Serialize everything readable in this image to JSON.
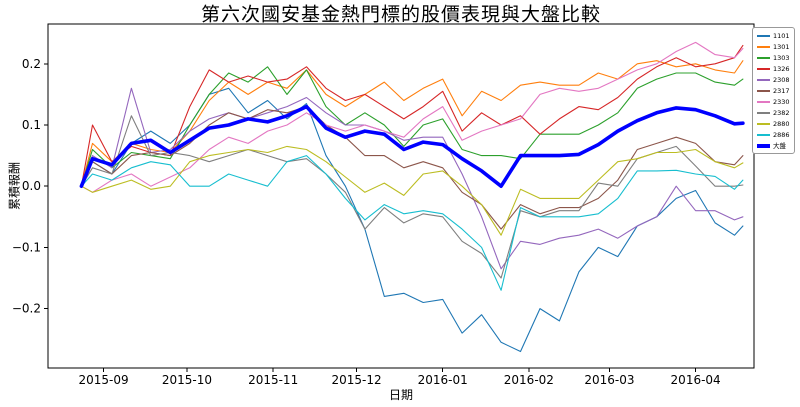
{
  "title": "第六次國安基金熱門標的股價表現與大盤比較",
  "chart_data": {
    "type": "line",
    "title": "第六次國安基金熱門標的股價表現與大盤比較",
    "xlabel": "日期",
    "ylabel": "累積報酬",
    "grid": false,
    "legend_position": "outside-right",
    "x_ticks": [
      "2015-09",
      "2015-10",
      "2015-11",
      "2015-12",
      "2016-01",
      "2016-02",
      "2016-03",
      "2016-04"
    ],
    "y_ticks": [
      0.2,
      0.1,
      0.0,
      -0.1,
      -0.2
    ],
    "ylim": [
      -0.297,
      0.265
    ],
    "xlim": [
      "2015-08-12",
      "2016-04-22"
    ],
    "x": [
      "2015-08-24",
      "2015-08-28",
      "2015-09-04",
      "2015-09-11",
      "2015-09-18",
      "2015-09-25",
      "2015-10-02",
      "2015-10-09",
      "2015-10-16",
      "2015-10-23",
      "2015-10-30",
      "2015-11-06",
      "2015-11-13",
      "2015-11-20",
      "2015-11-27",
      "2015-12-04",
      "2015-12-11",
      "2015-12-18",
      "2015-12-25",
      "2016-01-01",
      "2016-01-08",
      "2016-01-15",
      "2016-01-22",
      "2016-01-29",
      "2016-02-05",
      "2016-02-12",
      "2016-02-19",
      "2016-02-26",
      "2016-03-04",
      "2016-03-11",
      "2016-03-18",
      "2016-03-25",
      "2016-04-01",
      "2016-04-08",
      "2016-04-15",
      "2016-04-18"
    ],
    "series": [
      {
        "name": "1101",
        "color": "#1f77b4",
        "width": 1.1,
        "values": [
          0,
          0.04,
          0.02,
          0.07,
          0.09,
          0.07,
          0.1,
          0.15,
          0.16,
          0.12,
          0.14,
          0.11,
          0.135,
          0.05,
          0.0,
          -0.07,
          -0.18,
          -0.175,
          -0.19,
          -0.185,
          -0.24,
          -0.21,
          -0.255,
          -0.27,
          -0.2,
          -0.22,
          -0.14,
          -0.1,
          -0.115,
          -0.065,
          -0.05,
          -0.02,
          -0.007,
          -0.06,
          -0.08,
          -0.065
        ]
      },
      {
        "name": "1301",
        "color": "#ff7f0e",
        "width": 1.1,
        "values": [
          0,
          0.07,
          0.04,
          0.07,
          0.06,
          0.055,
          0.09,
          0.14,
          0.17,
          0.15,
          0.17,
          0.16,
          0.19,
          0.15,
          0.13,
          0.15,
          0.17,
          0.14,
          0.16,
          0.175,
          0.115,
          0.155,
          0.14,
          0.165,
          0.17,
          0.165,
          0.165,
          0.185,
          0.175,
          0.2,
          0.205,
          0.195,
          0.2,
          0.19,
          0.185,
          0.205
        ]
      },
      {
        "name": "1303",
        "color": "#2ca02c",
        "width": 1.1,
        "values": [
          0,
          0.06,
          0.03,
          0.055,
          0.05,
          0.045,
          0.1,
          0.15,
          0.185,
          0.17,
          0.195,
          0.15,
          0.19,
          0.13,
          0.1,
          0.12,
          0.1,
          0.065,
          0.1,
          0.11,
          0.06,
          0.05,
          0.05,
          0.045,
          0.085,
          0.085,
          0.085,
          0.1,
          0.12,
          0.16,
          0.175,
          0.185,
          0.185,
          0.17,
          0.165,
          0.175
        ]
      },
      {
        "name": "1326",
        "color": "#d62728",
        "width": 1.1,
        "values": [
          0,
          0.1,
          0.04,
          0.065,
          0.055,
          0.05,
          0.13,
          0.19,
          0.17,
          0.18,
          0.17,
          0.175,
          0.195,
          0.16,
          0.14,
          0.15,
          0.13,
          0.11,
          0.13,
          0.155,
          0.09,
          0.12,
          0.1,
          0.115,
          0.085,
          0.11,
          0.13,
          0.125,
          0.145,
          0.175,
          0.195,
          0.21,
          0.195,
          0.2,
          0.21,
          0.23
        ]
      },
      {
        "name": "2308",
        "color": "#9467bd",
        "width": 1.1,
        "values": [
          0,
          0.05,
          0.03,
          0.16,
          0.055,
          0.06,
          0.09,
          0.11,
          0.12,
          0.11,
          0.12,
          0.13,
          0.145,
          0.12,
          0.1,
          0.1,
          0.09,
          0.075,
          0.08,
          0.08,
          0.02,
          -0.05,
          -0.135,
          -0.09,
          -0.095,
          -0.085,
          -0.08,
          -0.07,
          -0.085,
          -0.065,
          -0.05,
          0.0,
          -0.04,
          -0.04,
          -0.055,
          -0.05
        ]
      },
      {
        "name": "2317",
        "color": "#8c564b",
        "width": 1.1,
        "values": [
          0,
          0.04,
          0.02,
          0.05,
          0.055,
          0.05,
          0.07,
          0.1,
          0.12,
          0.11,
          0.125,
          0.12,
          0.13,
          0.1,
          0.08,
          0.05,
          0.05,
          0.03,
          0.04,
          0.03,
          -0.01,
          -0.03,
          -0.07,
          -0.03,
          -0.045,
          -0.035,
          -0.035,
          -0.02,
          0.01,
          0.06,
          0.07,
          0.08,
          0.07,
          0.04,
          0.035,
          0.05
        ]
      },
      {
        "name": "2330",
        "color": "#e377c2",
        "width": 1.1,
        "values": [
          0,
          -0.01,
          0.01,
          0.02,
          0.0,
          0.015,
          0.03,
          0.06,
          0.08,
          0.07,
          0.09,
          0.1,
          0.12,
          0.1,
          0.09,
          0.1,
          0.09,
          0.08,
          0.11,
          0.13,
          0.075,
          0.09,
          0.1,
          0.11,
          0.15,
          0.16,
          0.155,
          0.16,
          0.175,
          0.19,
          0.2,
          0.22,
          0.235,
          0.215,
          0.21,
          0.225
        ]
      },
      {
        "name": "2382",
        "color": "#7f7f7f",
        "width": 1.1,
        "values": [
          0,
          0.03,
          0.02,
          0.115,
          0.05,
          0.055,
          0.05,
          0.04,
          0.05,
          0.06,
          0.05,
          0.04,
          0.045,
          0.02,
          -0.01,
          -0.07,
          -0.035,
          -0.06,
          -0.045,
          -0.05,
          -0.09,
          -0.11,
          -0.15,
          -0.04,
          -0.05,
          -0.04,
          -0.04,
          0.005,
          0.0,
          0.045,
          0.055,
          0.065,
          0.033,
          0.0,
          0.0,
          0.002
        ]
      },
      {
        "name": "2880",
        "color": "#bcbd22",
        "width": 1.1,
        "values": [
          0,
          -0.01,
          0.0,
          0.01,
          -0.005,
          0.0,
          0.04,
          0.05,
          0.055,
          0.06,
          0.055,
          0.065,
          0.06,
          0.04,
          0.015,
          -0.01,
          0.005,
          -0.015,
          0.02,
          0.025,
          0.0,
          -0.03,
          -0.08,
          -0.005,
          -0.02,
          -0.02,
          -0.02,
          0.01,
          0.04,
          0.045,
          0.055,
          0.055,
          0.06,
          0.04,
          0.03,
          0.038
        ]
      },
      {
        "name": "2886",
        "color": "#17becf",
        "width": 1.1,
        "values": [
          0,
          0.02,
          0.01,
          0.03,
          0.04,
          0.035,
          0.0,
          0.0,
          0.02,
          0.01,
          0.0,
          0.04,
          0.05,
          0.02,
          -0.02,
          -0.055,
          -0.03,
          -0.045,
          -0.04,
          -0.045,
          -0.07,
          -0.1,
          -0.17,
          -0.035,
          -0.05,
          -0.05,
          -0.05,
          -0.045,
          -0.02,
          0.025,
          0.025,
          0.026,
          0.02,
          0.016,
          -0.005,
          0.01
        ]
      },
      {
        "name": "大盤",
        "color": "#0000ff",
        "width": 3.6,
        "values": [
          0,
          0.045,
          0.035,
          0.07,
          0.075,
          0.055,
          0.075,
          0.095,
          0.1,
          0.11,
          0.105,
          0.115,
          0.13,
          0.095,
          0.08,
          0.09,
          0.085,
          0.06,
          0.072,
          0.068,
          0.045,
          0.025,
          0.0,
          0.05,
          0.05,
          0.05,
          0.052,
          0.068,
          0.09,
          0.107,
          0.12,
          0.128,
          0.125,
          0.115,
          0.102,
          0.103
        ]
      }
    ]
  }
}
